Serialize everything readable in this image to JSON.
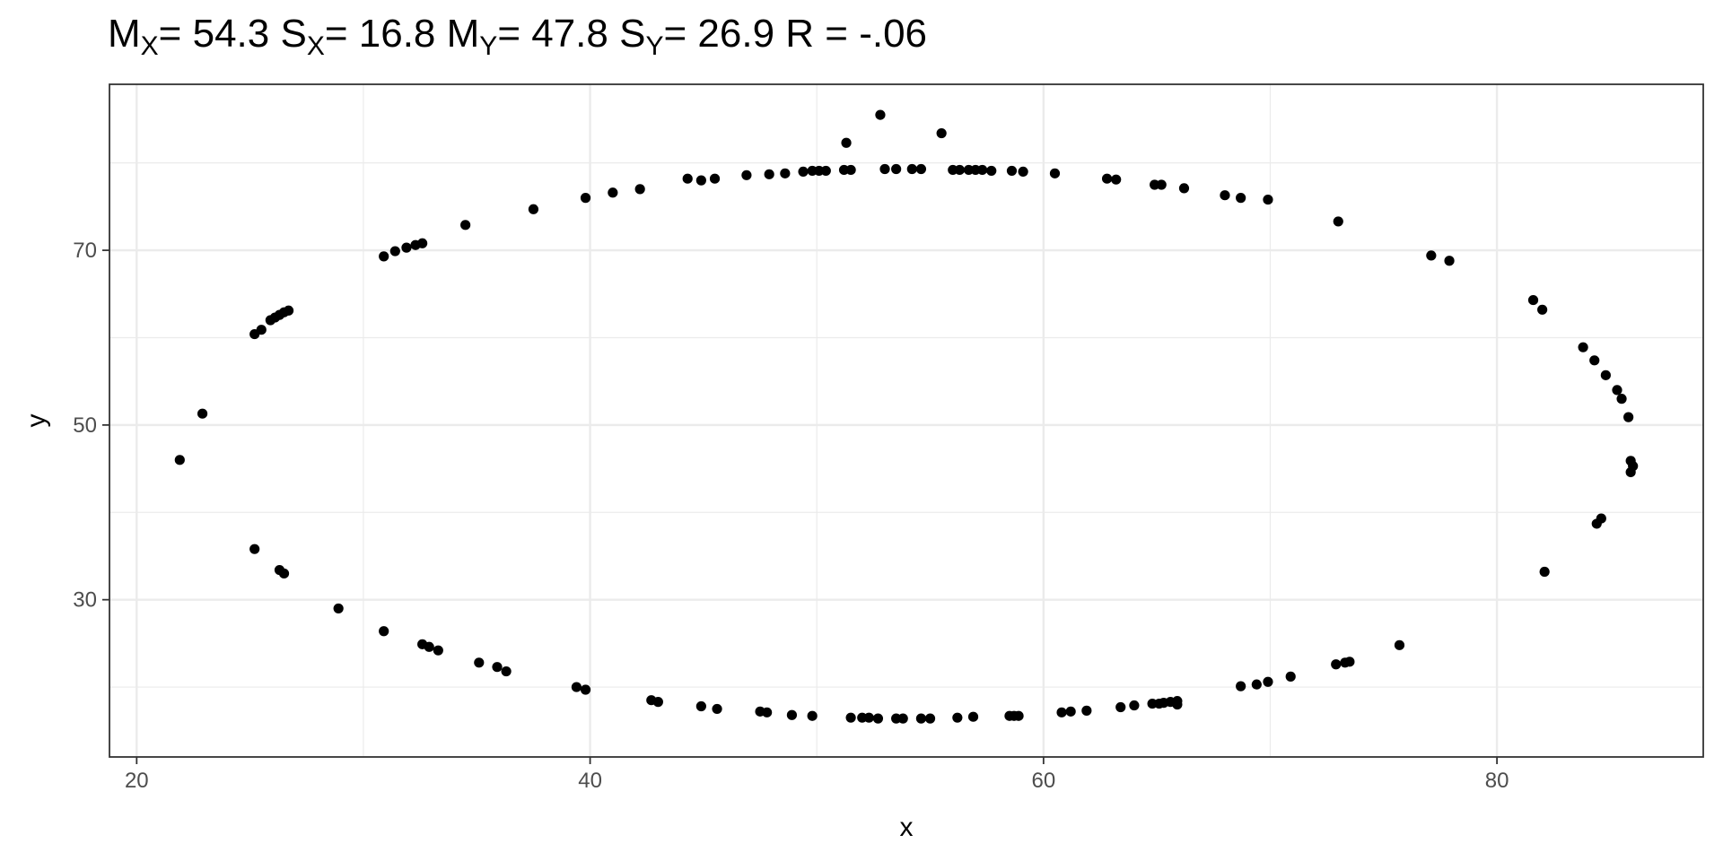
{
  "chart_data": {
    "type": "scatter",
    "title": {
      "mx_label": "M",
      "mx_sub": "X",
      "mx_value": "= 54.3",
      "sx_label": "S",
      "sx_sub": "X",
      "sx_value": "= 16.8",
      "my_label": "M",
      "my_sub": "Y",
      "my_value": "= 47.8",
      "sy_label": "S",
      "sy_sub": "Y",
      "sy_value": "= 26.9",
      "r_text": "R = -.06"
    },
    "xlabel": "x",
    "ylabel": "y",
    "xlim": [
      18.8,
      89.1
    ],
    "ylim": [
      12.0,
      89.0
    ],
    "xticks": [
      20,
      40,
      60,
      80
    ],
    "yticks": [
      30,
      50,
      70
    ],
    "grid": true,
    "legend": "none",
    "point_color": "#000000",
    "points": [
      [
        52.8,
        85.5
      ],
      [
        55.5,
        83.4
      ],
      [
        51.3,
        82.3
      ],
      [
        53.0,
        79.3
      ],
      [
        53.5,
        79.3
      ],
      [
        54.2,
        79.3
      ],
      [
        54.6,
        79.3
      ],
      [
        56.0,
        79.2
      ],
      [
        56.3,
        79.2
      ],
      [
        56.7,
        79.2
      ],
      [
        57.0,
        79.2
      ],
      [
        57.3,
        79.2
      ],
      [
        57.7,
        79.1
      ],
      [
        58.6,
        79.1
      ],
      [
        59.1,
        79.0
      ],
      [
        60.5,
        78.8
      ],
      [
        51.2,
        79.2
      ],
      [
        51.5,
        79.2
      ],
      [
        50.4,
        79.1
      ],
      [
        50.1,
        79.1
      ],
      [
        49.8,
        79.1
      ],
      [
        49.4,
        79.0
      ],
      [
        48.6,
        78.8
      ],
      [
        47.9,
        78.7
      ],
      [
        46.9,
        78.6
      ],
      [
        45.5,
        78.2
      ],
      [
        44.9,
        78.0
      ],
      [
        44.3,
        78.2
      ],
      [
        42.2,
        77.0
      ],
      [
        41.0,
        76.6
      ],
      [
        39.8,
        76.0
      ],
      [
        37.5,
        74.7
      ],
      [
        34.5,
        72.9
      ],
      [
        32.6,
        70.8
      ],
      [
        32.3,
        70.6
      ],
      [
        31.9,
        70.3
      ],
      [
        31.4,
        69.9
      ],
      [
        30.9,
        69.3
      ],
      [
        26.7,
        63.1
      ],
      [
        26.5,
        62.9
      ],
      [
        26.3,
        62.6
      ],
      [
        26.1,
        62.3
      ],
      [
        25.9,
        62.0
      ],
      [
        25.5,
        60.9
      ],
      [
        25.2,
        60.4
      ],
      [
        22.9,
        51.3
      ],
      [
        21.9,
        46.0
      ],
      [
        25.2,
        35.8
      ],
      [
        26.3,
        33.4
      ],
      [
        26.5,
        33.0
      ],
      [
        28.9,
        29.0
      ],
      [
        30.9,
        26.4
      ],
      [
        32.6,
        24.9
      ],
      [
        32.9,
        24.6
      ],
      [
        33.3,
        24.2
      ],
      [
        35.1,
        22.8
      ],
      [
        35.9,
        22.3
      ],
      [
        36.3,
        21.8
      ],
      [
        39.4,
        20.0
      ],
      [
        39.8,
        19.7
      ],
      [
        42.7,
        18.5
      ],
      [
        43.0,
        18.3
      ],
      [
        44.9,
        17.8
      ],
      [
        45.6,
        17.5
      ],
      [
        47.5,
        17.2
      ],
      [
        47.8,
        17.1
      ],
      [
        48.9,
        16.8
      ],
      [
        49.8,
        16.7
      ],
      [
        51.5,
        16.5
      ],
      [
        52.0,
        16.5
      ],
      [
        52.3,
        16.5
      ],
      [
        52.7,
        16.4
      ],
      [
        53.5,
        16.4
      ],
      [
        53.8,
        16.4
      ],
      [
        54.6,
        16.4
      ],
      [
        55.0,
        16.4
      ],
      [
        56.2,
        16.5
      ],
      [
        56.9,
        16.6
      ],
      [
        58.5,
        16.7
      ],
      [
        58.7,
        16.7
      ],
      [
        58.9,
        16.7
      ],
      [
        60.8,
        17.1
      ],
      [
        61.2,
        17.2
      ],
      [
        61.9,
        17.3
      ],
      [
        63.4,
        17.7
      ],
      [
        64.0,
        17.9
      ],
      [
        64.8,
        18.1
      ],
      [
        65.1,
        18.1
      ],
      [
        65.3,
        18.2
      ],
      [
        65.6,
        18.3
      ],
      [
        65.9,
        18.4
      ],
      [
        65.9,
        18.0
      ],
      [
        68.7,
        20.1
      ],
      [
        69.4,
        20.3
      ],
      [
        69.9,
        20.6
      ],
      [
        70.9,
        21.2
      ],
      [
        72.9,
        22.6
      ],
      [
        73.3,
        22.8
      ],
      [
        73.5,
        22.9
      ],
      [
        75.7,
        24.8
      ],
      [
        82.1,
        33.2
      ],
      [
        84.4,
        38.7
      ],
      [
        84.6,
        39.3
      ],
      [
        85.9,
        44.6
      ],
      [
        86.0,
        45.3
      ],
      [
        85.9,
        45.9
      ],
      [
        85.8,
        50.9
      ],
      [
        85.5,
        53.0
      ],
      [
        85.3,
        54.0
      ],
      [
        84.8,
        55.7
      ],
      [
        84.3,
        57.4
      ],
      [
        83.8,
        58.9
      ],
      [
        82.0,
        63.2
      ],
      [
        81.6,
        64.3
      ],
      [
        77.9,
        68.8
      ],
      [
        77.1,
        69.4
      ],
      [
        73.0,
        73.3
      ],
      [
        69.9,
        75.8
      ],
      [
        68.7,
        76.0
      ],
      [
        68.0,
        76.3
      ],
      [
        66.2,
        77.1
      ],
      [
        65.2,
        77.5
      ],
      [
        64.9,
        77.5
      ],
      [
        63.2,
        78.1
      ],
      [
        62.8,
        78.2
      ]
    ]
  }
}
